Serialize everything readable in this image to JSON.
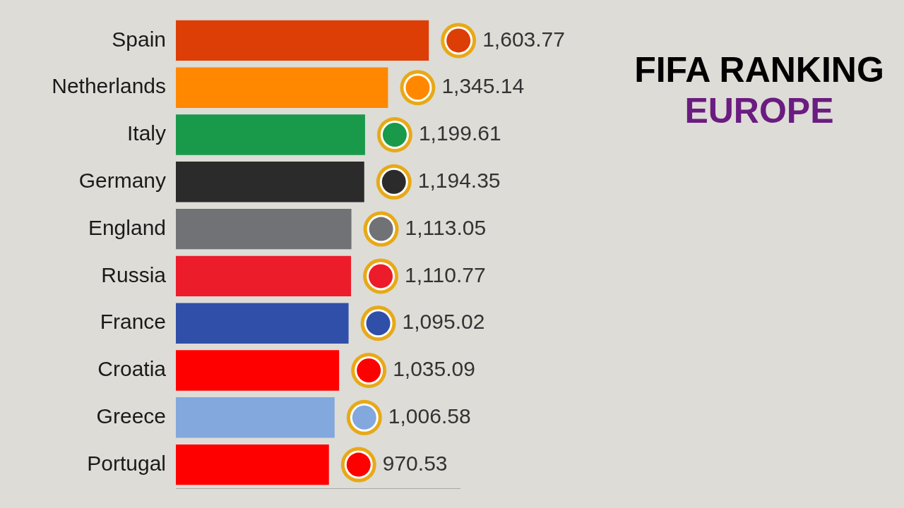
{
  "chart_data": {
    "type": "bar",
    "title": "FIFA RANKING",
    "subtitle": "EUROPE",
    "orientation": "horizontal",
    "categories": [
      "Spain",
      "Netherlands",
      "Italy",
      "Germany",
      "England",
      "Russia",
      "France",
      "Croatia",
      "Greece",
      "Portugal"
    ],
    "values": [
      1603.77,
      1345.14,
      1199.61,
      1194.35,
      1113.05,
      1110.77,
      1095.02,
      1035.09,
      1006.58,
      970.53
    ],
    "value_labels": [
      "1,603.77",
      "1,345.14",
      "1,199.61",
      "1,194.35",
      "1,113.05",
      "1,110.77",
      "1,095.02",
      "1,035.09",
      "1,006.58",
      "970.53"
    ],
    "colors": [
      "#dc3e06",
      "#ff8800",
      "#199a4b",
      "#2b2b2b",
      "#707275",
      "#ec1c2b",
      "#2f4fa8",
      "#ff0000",
      "#82a8dd",
      "#ff0000"
    ],
    "xlim": [
      0,
      1800
    ],
    "grid": false,
    "tick_labels": "y",
    "data_labels": true
  }
}
